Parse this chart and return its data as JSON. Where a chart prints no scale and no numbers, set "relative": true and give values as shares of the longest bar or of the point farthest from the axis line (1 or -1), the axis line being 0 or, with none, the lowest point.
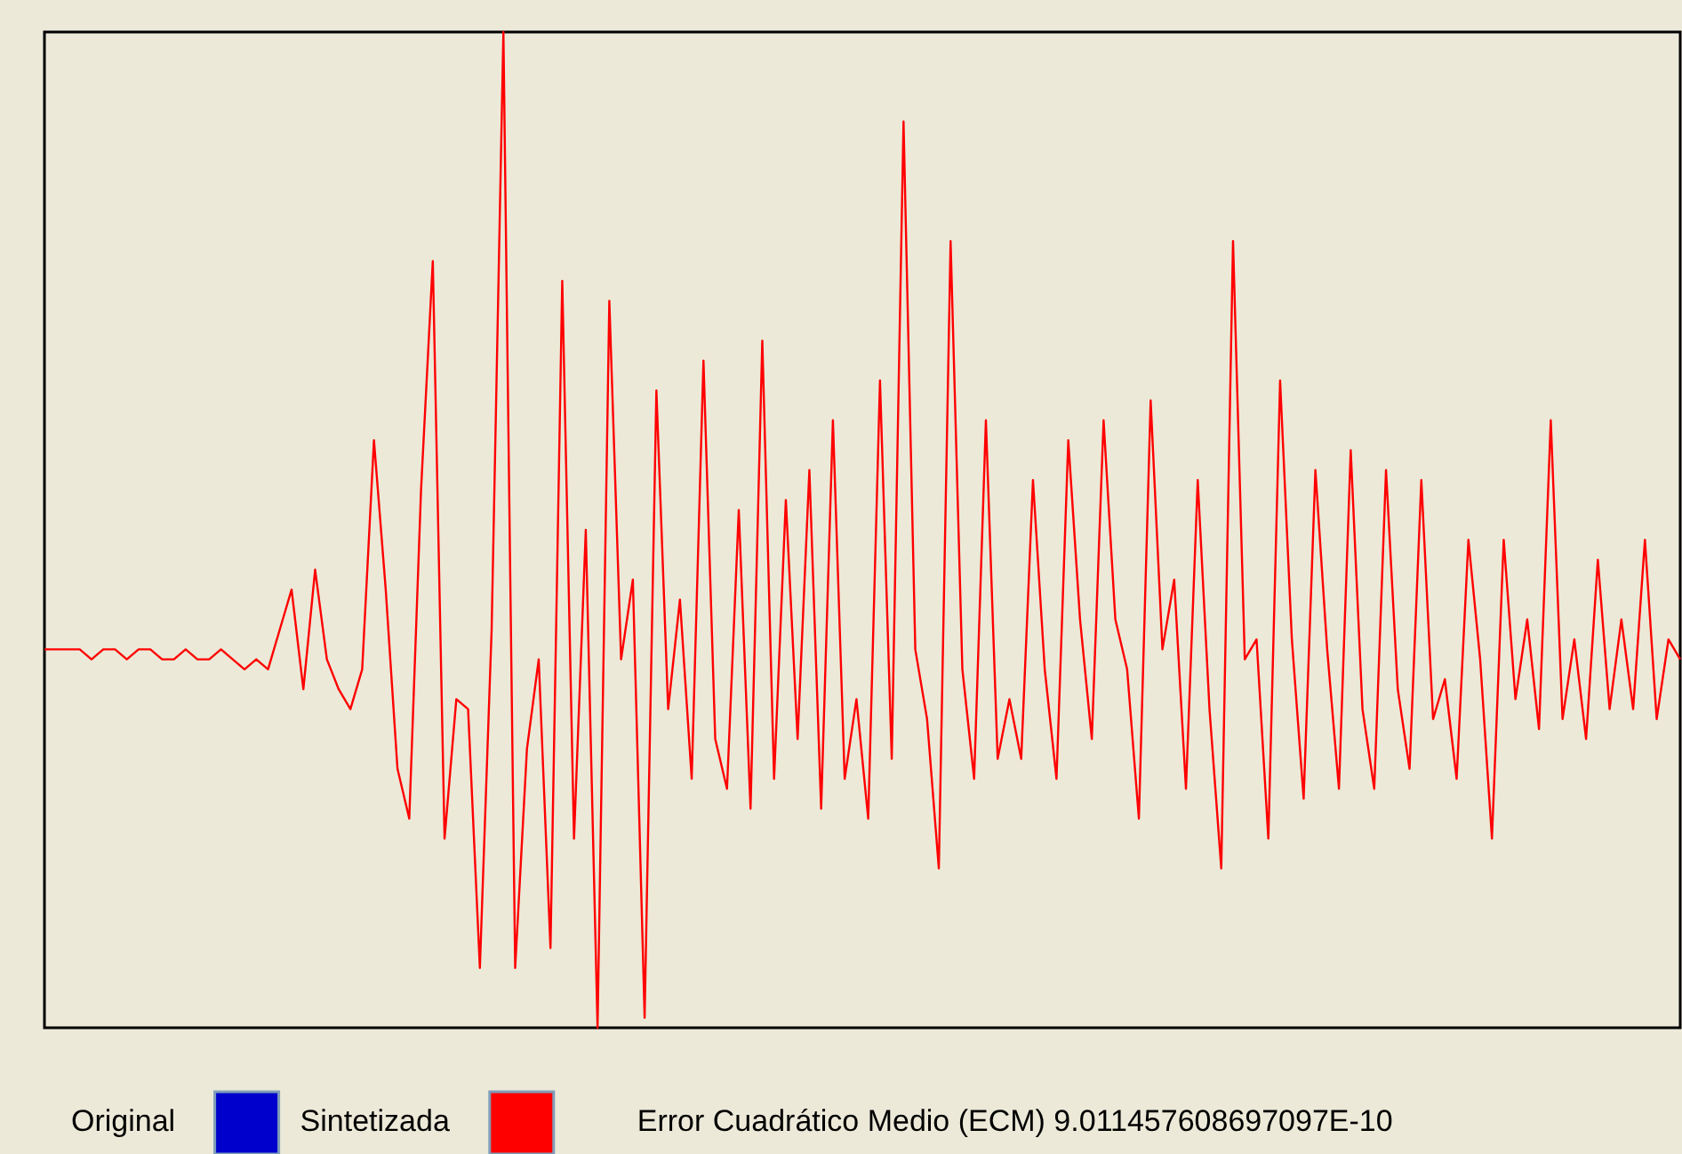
{
  "chart_data": {
    "type": "line",
    "relative": true,
    "legend": "bottom",
    "grid": false,
    "tick_labels": false,
    "categories": [
      null,
      null,
      null,
      null,
      null,
      null,
      null,
      null,
      null,
      null,
      null,
      null,
      null,
      null,
      null,
      null,
      null,
      null,
      null,
      null,
      null,
      null,
      null,
      null,
      null,
      null,
      null,
      null,
      null,
      null,
      null,
      null,
      null,
      null,
      null,
      null,
      null,
      null,
      null,
      null,
      null,
      null,
      null,
      null,
      null,
      null,
      null,
      null,
      null,
      null,
      null,
      null,
      null,
      null,
      null,
      null,
      null,
      null,
      null,
      null,
      null,
      null,
      null,
      null,
      null,
      null,
      null,
      null,
      null,
      null,
      null,
      null,
      null,
      null,
      null,
      null,
      null,
      null,
      null,
      null,
      null,
      null,
      null,
      null,
      null,
      null,
      null,
      null,
      null,
      null,
      null,
      null,
      null,
      null,
      null,
      null,
      null,
      null,
      null,
      null,
      null,
      null,
      null,
      null,
      null,
      null,
      null,
      null,
      null,
      null,
      null,
      null,
      null,
      null,
      null,
      null,
      null,
      null,
      null,
      null,
      null,
      null,
      null,
      null,
      null,
      null,
      null,
      null,
      null,
      null,
      null,
      null,
      null,
      null,
      null,
      null,
      null,
      null,
      null,
      null
    ],
    "series": [
      {
        "name": "Original",
        "color": "#0000cc",
        "values": [
          null,
          null,
          null,
          null,
          null,
          null,
          null,
          null,
          null,
          null,
          null,
          null,
          null,
          null,
          null,
          null,
          null,
          null,
          null,
          null,
          null,
          null,
          null,
          null,
          null,
          null,
          null,
          null,
          null,
          null,
          null,
          null,
          null,
          null,
          null,
          null,
          null,
          null,
          null,
          null,
          null,
          null,
          null,
          null,
          null,
          null,
          null,
          null,
          null,
          null,
          null,
          null,
          null,
          null,
          null,
          null,
          null,
          null,
          null,
          null,
          null,
          null,
          null,
          null,
          null,
          null,
          null,
          null,
          null,
          null,
          null,
          null,
          null,
          null,
          null,
          null,
          null,
          null,
          null,
          null,
          null,
          null,
          null,
          null,
          null,
          null,
          null,
          null,
          null,
          null,
          null,
          null,
          null,
          null,
          null,
          null,
          null,
          null,
          null,
          null,
          null,
          null,
          null,
          null,
          null,
          null,
          null,
          null,
          null,
          null,
          null,
          null,
          null,
          null,
          null,
          null,
          null,
          null,
          null,
          null,
          null,
          null,
          null,
          null,
          null,
          null,
          null,
          null,
          null,
          null,
          null,
          null,
          null,
          null,
          null,
          null,
          null,
          null,
          null,
          null
        ]
      },
      {
        "name": "Sintetizada",
        "color": "#ff0000",
        "values": [
          0.38,
          0.38,
          0.38,
          0.38,
          0.37,
          0.38,
          0.38,
          0.37,
          0.38,
          0.38,
          0.37,
          0.37,
          0.38,
          0.37,
          0.37,
          0.38,
          0.37,
          0.36,
          0.37,
          0.36,
          0.4,
          0.44,
          0.34,
          0.46,
          0.37,
          0.34,
          0.32,
          0.36,
          0.59,
          0.44,
          0.26,
          0.21,
          0.54,
          0.77,
          0.19,
          0.33,
          0.32,
          0.06,
          0.4,
          1.0,
          0.06,
          0.28,
          0.37,
          0.08,
          0.75,
          0.19,
          0.5,
          0.0,
          0.73,
          0.37,
          0.45,
          0.01,
          0.64,
          0.32,
          0.43,
          0.25,
          0.67,
          0.29,
          0.24,
          0.52,
          0.22,
          0.69,
          0.25,
          0.53,
          0.29,
          0.56,
          0.22,
          0.61,
          0.25,
          0.33,
          0.21,
          0.65,
          0.27,
          0.91,
          0.38,
          0.31,
          0.16,
          0.79,
          0.36,
          0.25,
          0.61,
          0.27,
          0.33,
          0.27,
          0.55,
          0.36,
          0.25,
          0.59,
          0.41,
          0.29,
          0.61,
          0.41,
          0.36,
          0.21,
          0.63,
          0.38,
          0.45,
          0.24,
          0.55,
          0.32,
          0.16,
          0.79,
          0.37,
          0.39,
          0.19,
          0.65,
          0.39,
          0.23,
          0.56,
          0.38,
          0.24,
          0.58,
          0.32,
          0.24,
          0.56,
          0.34,
          0.26,
          0.55,
          0.31,
          0.35,
          0.25,
          0.49,
          0.37,
          0.19,
          0.49,
          0.33,
          0.41,
          0.3,
          0.61,
          0.31,
          0.39,
          0.29,
          0.47,
          0.32,
          0.41,
          0.32,
          0.49,
          0.31,
          0.39,
          0.37
        ]
      }
    ],
    "annotations": [
      "Error Cuadrático Medio (ECM)  9.011457608697097E-10"
    ]
  }
}
